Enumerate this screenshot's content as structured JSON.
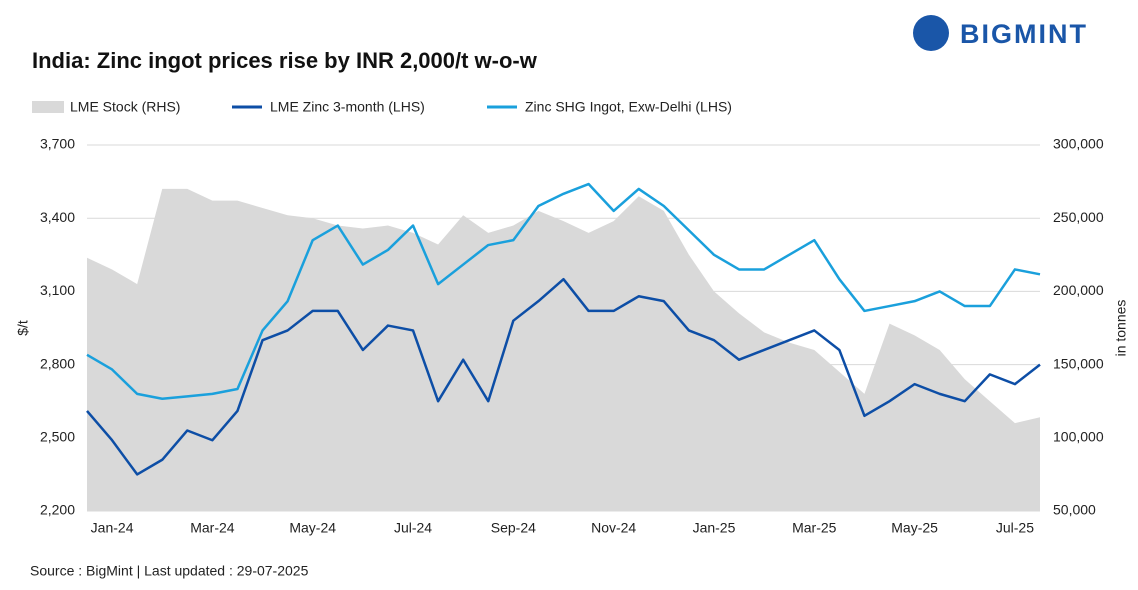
{
  "chart_data": {
    "type": "line",
    "logo": "BIGMINT",
    "title": "India: Zinc ingot prices rise by INR 2,000/t w-o-w",
    "y_label": "$/t",
    "y2_label": "in tonnes",
    "source": "Source : BigMint | Last updated : 29-07-2025",
    "categories": [
      null,
      "Jan-24",
      null,
      null,
      null,
      "Mar-24",
      null,
      null,
      null,
      "May-24",
      null,
      null,
      null,
      "Jul-24",
      null,
      null,
      null,
      "Sep-24",
      null,
      null,
      null,
      "Nov-24",
      null,
      null,
      null,
      "Jan-25",
      null,
      null,
      null,
      "Mar-25",
      null,
      null,
      null,
      "May-25",
      null,
      null,
      null,
      "Jul-25",
      null
    ],
    "ylim": [
      2200,
      3700
    ],
    "yticks": [
      {
        "value": 2200,
        "label": "2,200"
      },
      {
        "value": 2500,
        "label": "2,500"
      },
      {
        "value": 2800,
        "label": "2,800"
      },
      {
        "value": 3100,
        "label": "3,100"
      },
      {
        "value": 3400,
        "label": "3,400"
      },
      {
        "value": 3700,
        "label": "3,700"
      }
    ],
    "y2lim": [
      50000,
      300000
    ],
    "y2ticks": [
      {
        "value": 50000,
        "label": "50,000"
      },
      {
        "value": 100000,
        "label": "100,000"
      },
      {
        "value": 150000,
        "label": "150,000"
      },
      {
        "value": 200000,
        "label": "200,000"
      },
      {
        "value": 250000,
        "label": "250,000"
      },
      {
        "value": 300000,
        "label": "300,000"
      }
    ],
    "grid": true,
    "series": [
      {
        "name": "LME Stock (RHS)",
        "type": "area",
        "axis": "y2",
        "color": "#d9d9d9",
        "values": [
          223000,
          215000,
          205000,
          270000,
          270000,
          262000,
          262000,
          257000,
          252000,
          250000,
          245000,
          243000,
          245000,
          240000,
          232000,
          252000,
          240000,
          245000,
          255000,
          248000,
          240000,
          248000,
          265000,
          255000,
          225000,
          200000,
          185000,
          172000,
          165000,
          160000,
          145000,
          130000,
          178000,
          170000,
          160000,
          140000,
          125000,
          110000,
          114000
        ]
      },
      {
        "name": "LME  Zinc  3-month (LHS)",
        "type": "line",
        "color": "#0d4ea6",
        "values": [
          2610,
          2490,
          2350,
          2410,
          2530,
          2490,
          2610,
          2900,
          2940,
          3020,
          3020,
          2860,
          2960,
          2940,
          2650,
          2820,
          2650,
          2980,
          3060,
          3150,
          3020,
          3020,
          3080,
          3060,
          2940,
          2900,
          2820,
          2860,
          2900,
          2940,
          2860,
          2590,
          2650,
          2720,
          2680,
          2650,
          2760,
          2720,
          2800
        ]
      },
      {
        "name": "Zinc SHG Ingot, Exw-Delhi (LHS)",
        "type": "line",
        "color": "#1aa0dc",
        "values": [
          2840,
          2780,
          2680,
          2660,
          2670,
          2680,
          2700,
          2940,
          3060,
          3310,
          3370,
          3210,
          3270,
          3370,
          3130,
          3210,
          3290,
          3310,
          3450,
          3500,
          3540,
          3430,
          3520,
          3450,
          3350,
          3250,
          3190,
          3190,
          3250,
          3310,
          3150,
          3020,
          3040,
          3060,
          3100,
          3040,
          3040,
          3190,
          3170
        ]
      }
    ]
  }
}
